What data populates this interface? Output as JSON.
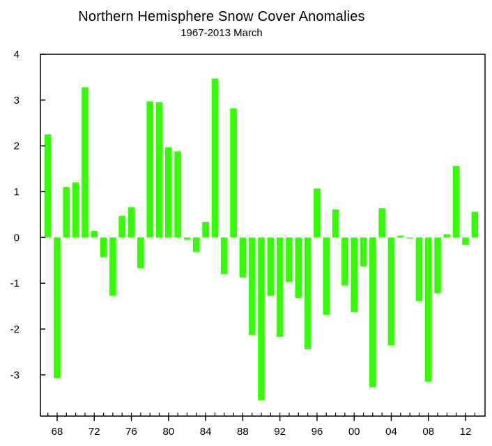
{
  "chart_data": {
    "type": "bar",
    "title": "Northern Hemisphere Snow Cover Anomalies",
    "subtitle": "1967-2013 March",
    "xlabel": "",
    "ylabel": "",
    "ylim": [
      -3.9,
      4
    ],
    "xlim": [
      1966.2,
      2014.1
    ],
    "y_ticks": [
      4,
      3,
      2,
      1,
      0,
      -1,
      -2,
      -3
    ],
    "x_ticks": [
      {
        "year": 1968,
        "label": "68"
      },
      {
        "year": 1972,
        "label": "72"
      },
      {
        "year": 1976,
        "label": "76"
      },
      {
        "year": 1980,
        "label": "80"
      },
      {
        "year": 1984,
        "label": "84"
      },
      {
        "year": 1988,
        "label": "88"
      },
      {
        "year": 1992,
        "label": "92"
      },
      {
        "year": 1996,
        "label": "96"
      },
      {
        "year": 2000,
        "label": "00"
      },
      {
        "year": 2004,
        "label": "04"
      },
      {
        "year": 2008,
        "label": "08"
      },
      {
        "year": 2012,
        "label": "12"
      }
    ],
    "grid": false,
    "bar_color": "#33ff00",
    "x": [
      1967,
      1968,
      1969,
      1970,
      1971,
      1972,
      1973,
      1974,
      1975,
      1976,
      1977,
      1978,
      1979,
      1980,
      1981,
      1982,
      1983,
      1984,
      1985,
      1986,
      1987,
      1988,
      1989,
      1990,
      1991,
      1992,
      1993,
      1994,
      1995,
      1996,
      1997,
      1998,
      1999,
      2000,
      2001,
      2002,
      2003,
      2004,
      2005,
      2006,
      2007,
      2008,
      2009,
      2010,
      2011,
      2012,
      2013
    ],
    "values": [
      2.25,
      -3.07,
      1.1,
      1.2,
      3.28,
      0.14,
      -0.43,
      -1.27,
      0.47,
      0.66,
      -0.67,
      2.97,
      2.95,
      1.97,
      1.88,
      -0.05,
      -0.32,
      0.34,
      3.47,
      -0.8,
      2.82,
      -0.87,
      -2.13,
      -3.55,
      -1.27,
      -2.17,
      -0.97,
      -1.32,
      -2.44,
      1.07,
      -1.69,
      0.61,
      -1.05,
      -1.63,
      -0.63,
      -3.27,
      0.64,
      -2.36,
      0.04,
      -0.02,
      -1.39,
      -3.15,
      -1.22,
      0.07,
      1.56,
      -0.16,
      0.56
    ]
  }
}
